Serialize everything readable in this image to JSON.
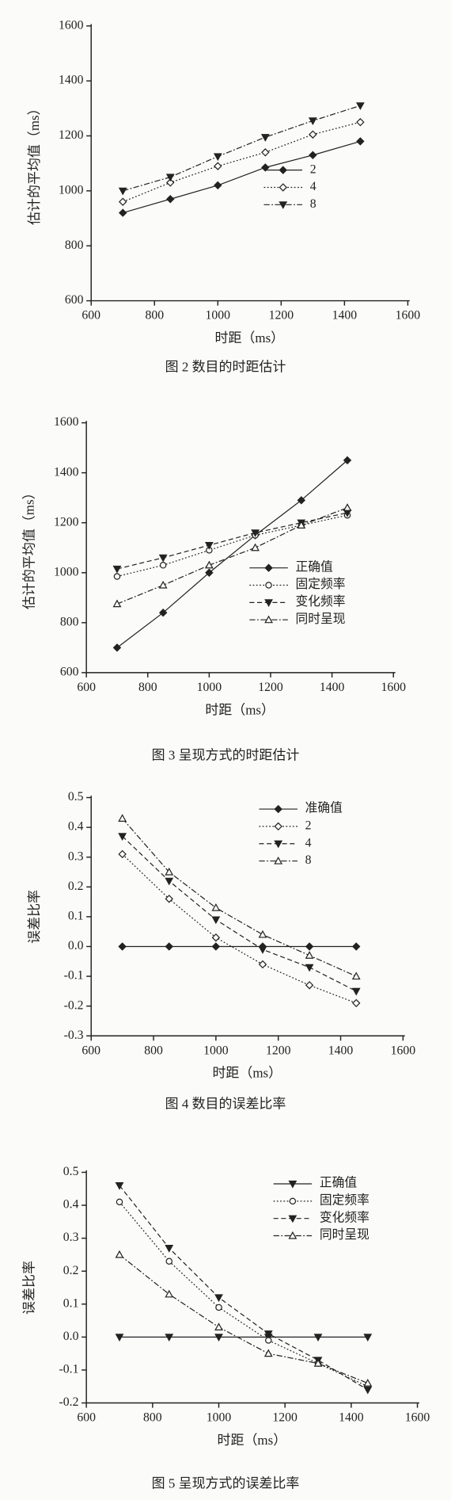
{
  "chart_data": [
    {
      "type": "line",
      "title": "图 2   数目的时距估计",
      "x_label": "时距（ms）",
      "y_label": "估计的平均值（ms）",
      "x": [
        700,
        850,
        1000,
        1150,
        1300,
        1450
      ],
      "series": [
        {
          "name": "2",
          "color": "#222222",
          "marker": "filled-diamond",
          "dash": "solid",
          "values": [
            920,
            970,
            1020,
            1085,
            1130,
            1180
          ]
        },
        {
          "name": "4",
          "color": "#222222",
          "marker": "open-diamond",
          "dash": "dotted",
          "values": [
            960,
            1030,
            1090,
            1140,
            1205,
            1250
          ]
        },
        {
          "name": "8",
          "color": "#222222",
          "marker": "filled-triangle-down",
          "dash": "dashdot",
          "values": [
            1000,
            1050,
            1125,
            1195,
            1255,
            1310
          ]
        }
      ],
      "xlim": [
        600,
        1600
      ],
      "xticks": [
        600,
        800,
        1000,
        1200,
        1400,
        1600
      ],
      "ylim": [
        600,
        1600
      ],
      "yticks": [
        600,
        800,
        1000,
        1200,
        1400,
        1600
      ],
      "legend": "center right"
    },
    {
      "type": "line",
      "title": "图 3   呈现方式的时距估计",
      "x_label": "时距（ms）",
      "y_label": "估计的平均值（ms）",
      "x": [
        700,
        850,
        1000,
        1150,
        1300,
        1450
      ],
      "series": [
        {
          "name": "正确值",
          "color": "#222222",
          "marker": "filled-diamond",
          "dash": "solid",
          "values": [
            700,
            840,
            1000,
            1150,
            1290,
            1450
          ]
        },
        {
          "name": "固定频率",
          "color": "#222222",
          "marker": "open-circle",
          "dash": "dotted",
          "values": [
            985,
            1030,
            1090,
            1150,
            1190,
            1230
          ]
        },
        {
          "name": "变化频率",
          "color": "#222222",
          "marker": "filled-triangle-down",
          "dash": "dashed",
          "values": [
            1015,
            1060,
            1110,
            1160,
            1200,
            1240
          ]
        },
        {
          "name": "同时呈现",
          "color": "#222222",
          "marker": "open-triangle-up",
          "dash": "dashdot",
          "values": [
            875,
            950,
            1030,
            1100,
            1190,
            1260
          ]
        }
      ],
      "xlim": [
        600,
        1600
      ],
      "xticks": [
        600,
        800,
        1000,
        1200,
        1400,
        1600
      ],
      "ylim": [
        600,
        1600
      ],
      "yticks": [
        600,
        800,
        1000,
        1200,
        1400,
        1600
      ],
      "legend": "lower right"
    },
    {
      "type": "line",
      "title": "图 4   数目的误差比率",
      "x_label": "时距（ms）",
      "y_label": "误差比率",
      "x": [
        700,
        850,
        1000,
        1150,
        1300,
        1450
      ],
      "series": [
        {
          "name": "准确值",
          "color": "#222222",
          "marker": "filled-diamond",
          "dash": "solid",
          "values": [
            0,
            0,
            0,
            0,
            0,
            0
          ]
        },
        {
          "name": "2",
          "color": "#222222",
          "marker": "open-diamond",
          "dash": "dotted",
          "values": [
            0.31,
            0.16,
            0.03,
            -0.06,
            -0.13,
            -0.19
          ]
        },
        {
          "name": "4",
          "color": "#222222",
          "marker": "filled-triangle-down",
          "dash": "dashed",
          "values": [
            0.37,
            0.22,
            0.09,
            -0.01,
            -0.07,
            -0.15
          ]
        },
        {
          "name": "8",
          "color": "#222222",
          "marker": "open-triangle-up",
          "dash": "dashdot",
          "values": [
            0.43,
            0.25,
            0.13,
            0.04,
            -0.03,
            -0.1
          ]
        }
      ],
      "xlim": [
        600,
        1600
      ],
      "xticks": [
        600,
        800,
        1000,
        1200,
        1400,
        1600
      ],
      "ylim": [
        -0.3,
        0.5
      ],
      "yticks": [
        -0.3,
        -0.2,
        -0.1,
        {
          "value": 0,
          "label": "0.0"
        },
        0.1,
        0.2,
        0.3,
        0.4,
        0.5
      ],
      "legend": "upper right"
    },
    {
      "type": "line",
      "title": "图 5   呈现方式的误差比率",
      "x_label": "时距（ms）",
      "y_label": "误差比率",
      "x": [
        700,
        850,
        1000,
        1150,
        1300,
        1450
      ],
      "series": [
        {
          "name": "正确值",
          "color": "#222222",
          "marker": "filled-triangle-down",
          "dash": "solid",
          "values": [
            0,
            0,
            0,
            0,
            0,
            0
          ]
        },
        {
          "name": "固定频率",
          "color": "#222222",
          "marker": "open-circle",
          "dash": "dotted",
          "values": [
            0.41,
            0.23,
            0.09,
            -0.01,
            -0.08,
            -0.15
          ]
        },
        {
          "name": "变化频率",
          "color": "#222222",
          "marker": "filled-triangle-down",
          "dash": "dashed",
          "values": [
            0.46,
            0.27,
            0.12,
            0.01,
            -0.07,
            -0.16
          ]
        },
        {
          "name": "同时呈现",
          "color": "#222222",
          "marker": "open-triangle-up",
          "dash": "dashdot",
          "values": [
            0.25,
            0.13,
            0.03,
            -0.05,
            -0.08,
            -0.14
          ]
        }
      ],
      "xlim": [
        600,
        1600
      ],
      "xticks": [
        600,
        800,
        1000,
        1200,
        1400,
        1600
      ],
      "ylim": [
        -0.2,
        0.5
      ],
      "yticks": [
        -0.2,
        -0.1,
        {
          "value": 0,
          "label": "0.0"
        },
        0.1,
        0.2,
        0.3,
        0.4,
        0.5
      ],
      "legend": "upper right"
    }
  ]
}
